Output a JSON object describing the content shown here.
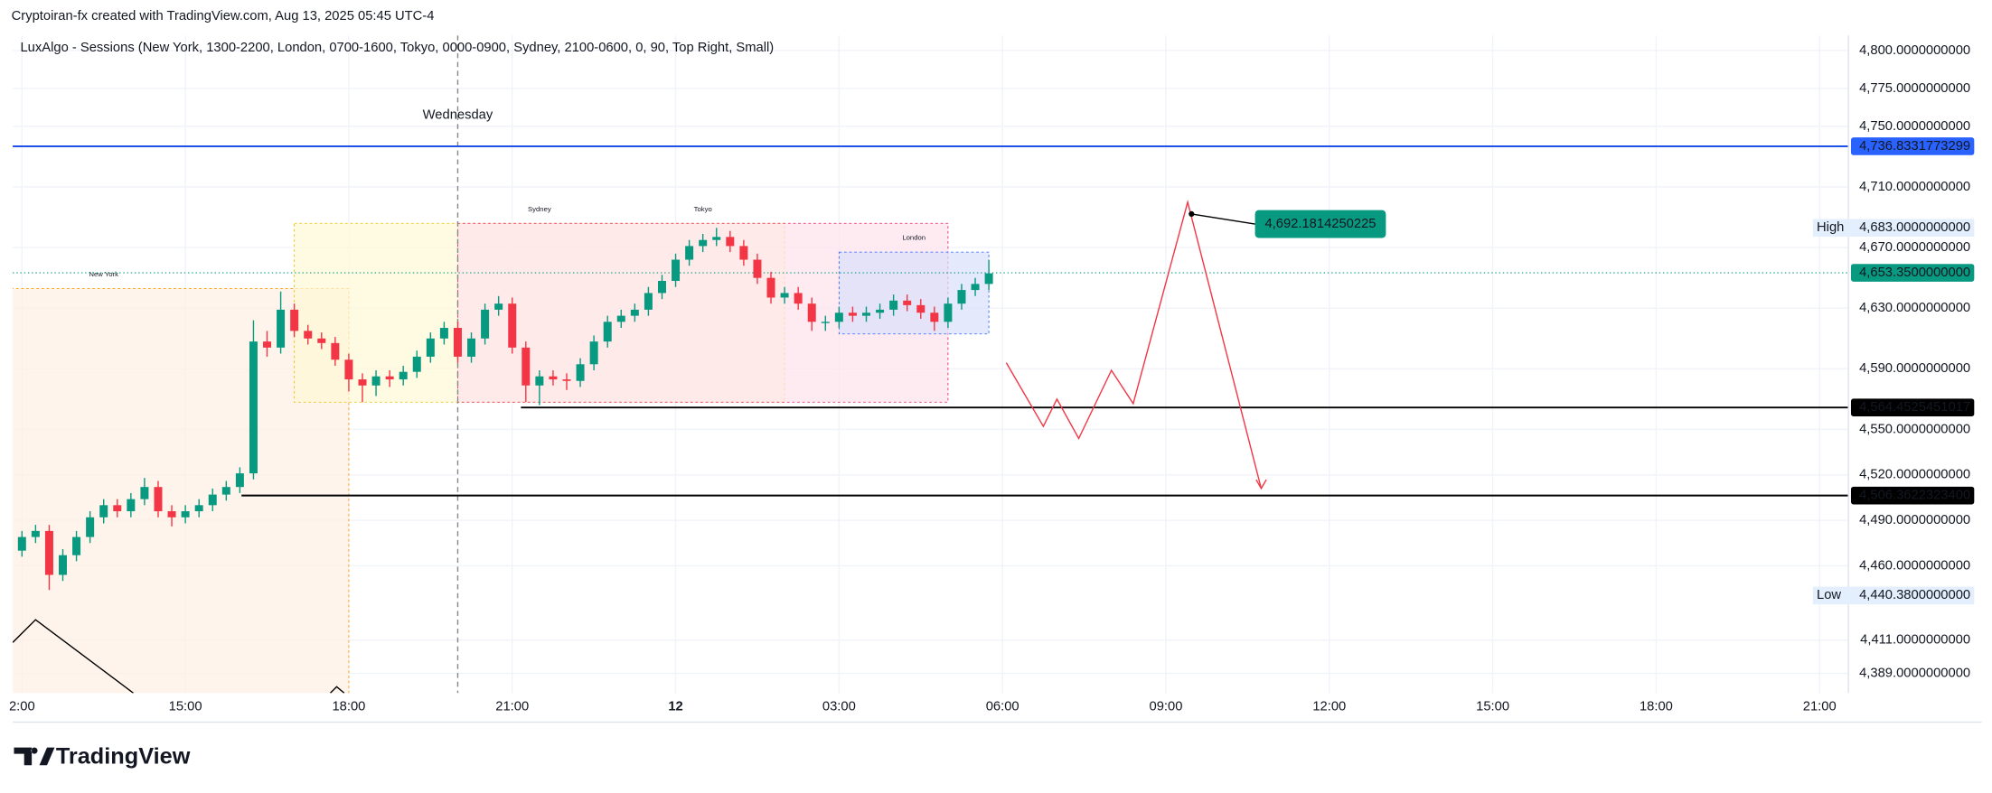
{
  "header": "Cryptoiran-fx created with TradingView.com, Aug 13, 2025 05:45 UTC-4",
  "footer": "TradingView",
  "chart_data": {
    "type": "candlestick",
    "title": "LuxAlgo - Sessions (New York, 1300-2200, London, 0700-1600, Tokyo, 0000-0900, Sydney, 2100-0600, 0, 90, Top Right, Small)",
    "up_color": "#089981",
    "down_color": "#f23645",
    "grid": true,
    "xlim": [
      -0.17,
      33.53
    ],
    "ylim": [
      4376,
      4810
    ],
    "xticks": [
      {
        "value": 0,
        "label": "2:00"
      },
      {
        "value": 3,
        "label": "15:00"
      },
      {
        "value": 6,
        "label": "18:00"
      },
      {
        "value": 9,
        "label": "21:00"
      },
      12,
      {
        "value": 15,
        "label": "03:00"
      },
      {
        "value": 18,
        "label": "06:00"
      },
      {
        "value": 21,
        "label": "09:00"
      },
      {
        "value": 24,
        "label": "12:00"
      },
      {
        "value": 27,
        "label": "15:00"
      },
      {
        "value": 30,
        "label": "18:00"
      },
      {
        "value": 33,
        "label": "21:00"
      }
    ],
    "yticks": [
      {
        "value": 4800,
        "label": "4,800.0000000000"
      },
      {
        "value": 4775,
        "label": "4,775.0000000000"
      },
      {
        "value": 4750,
        "label": "4,750.0000000000"
      },
      {
        "value": 4710,
        "label": "4,710.0000000000"
      },
      {
        "value": 4670,
        "label": "4,670.0000000000"
      },
      {
        "value": 4630,
        "label": "4,630.0000000000"
      },
      {
        "value": 4590,
        "label": "4,590.0000000000"
      },
      {
        "value": 4550,
        "label": "4,550.0000000000"
      },
      {
        "value": 4520,
        "label": "4,520.0000000000"
      },
      {
        "value": 4490,
        "label": "4,490.0000000000"
      },
      {
        "value": 4460,
        "label": "4,460.0000000000"
      },
      {
        "value": 4411,
        "label": "4,411.0000000000"
      },
      {
        "value": 4389,
        "label": "4,389.0000000000"
      }
    ],
    "day_marker": {
      "label": "Wednesday",
      "x": 8
    },
    "x": [
      0,
      0.25,
      0.5,
      0.75,
      1,
      1.25,
      1.5,
      1.75,
      2,
      2.25,
      2.5,
      2.75,
      3,
      3.25,
      3.5,
      3.75,
      4,
      4.25,
      4.5,
      4.75,
      5,
      5.25,
      5.5,
      5.75,
      6,
      6.25,
      6.5,
      6.75,
      7,
      7.25,
      7.5,
      7.75,
      8,
      8.25,
      8.5,
      8.75,
      9,
      9.25,
      9.5,
      9.75,
      10,
      10.25,
      10.5,
      10.75,
      11,
      11.25,
      11.5,
      11.75,
      12,
      12.25,
      12.5,
      12.75,
      13,
      13.25,
      13.5,
      13.75,
      14,
      14.25,
      14.5,
      14.75,
      15,
      15.25,
      15.5,
      15.75,
      16,
      16.25,
      16.5,
      16.75,
      17,
      17.25,
      17.5,
      17.75
    ],
    "open": [
      4470,
      4479,
      4483,
      4454,
      4467,
      4479,
      4492,
      4500,
      4496,
      4504,
      4512,
      4496,
      4492,
      4496,
      4500,
      4507,
      4512,
      4521,
      4608,
      4604,
      4629,
      4615,
      4610,
      4607,
      4596,
      4583,
      4579,
      4585,
      4583,
      4588,
      4598,
      4610,
      4617,
      4598,
      4610,
      4629,
      4633,
      4604,
      4579,
      4585,
      4583,
      4582,
      4593,
      4608,
      4621,
      4625,
      4629,
      4640,
      4648,
      4662,
      4671,
      4675,
      4677,
      4671,
      4662,
      4650,
      4637,
      4640,
      4633,
      4621,
      4621,
      4627,
      4625,
      4627,
      4629,
      4635,
      4632,
      4627,
      4621,
      4633,
      4642,
      4646
    ],
    "high": [
      4483,
      4487,
      4487,
      4471,
      4483,
      4496,
      4504,
      4504,
      4508,
      4518,
      4516,
      4500,
      4500,
      4504,
      4511,
      4516,
      4525,
      4622,
      4615,
      4641,
      4633,
      4619,
      4614,
      4611,
      4600,
      4587,
      4589,
      4589,
      4592,
      4602,
      4614,
      4621,
      4621,
      4614,
      4633,
      4638,
      4637,
      4608,
      4589,
      4589,
      4587,
      4597,
      4612,
      4625,
      4629,
      4633,
      4644,
      4652,
      4666,
      4675,
      4679,
      4683,
      4681,
      4675,
      4666,
      4654,
      4644,
      4644,
      4637,
      4625,
      4631,
      4631,
      4631,
      4633,
      4639,
      4639,
      4636,
      4631,
      4637,
      4646,
      4650,
      4662
    ],
    "low": [
      4466,
      4475,
      4444,
      4450,
      4463,
      4475,
      4488,
      4492,
      4492,
      4500,
      4492,
      4486,
      4488,
      4492,
      4496,
      4503,
      4508,
      4517,
      4598,
      4600,
      4611,
      4606,
      4603,
      4592,
      4575,
      4568,
      4572,
      4578,
      4579,
      4584,
      4594,
      4606,
      4594,
      4594,
      4606,
      4625,
      4600,
      4568,
      4566,
      4579,
      4576,
      4578,
      4589,
      4604,
      4617,
      4621,
      4625,
      4636,
      4644,
      4658,
      4667,
      4671,
      4667,
      4658,
      4646,
      4633,
      4633,
      4629,
      4615,
      4615,
      4617,
      4621,
      4621,
      4623,
      4625,
      4628,
      4623,
      4615,
      4617,
      4629,
      4638,
      4642
    ],
    "close": [
      4479,
      4483,
      4454,
      4467,
      4479,
      4492,
      4500,
      4496,
      4504,
      4512,
      4496,
      4492,
      4496,
      4500,
      4507,
      4512,
      4521,
      4608,
      4604,
      4629,
      4615,
      4610,
      4607,
      4596,
      4583,
      4579,
      4585,
      4583,
      4588,
      4598,
      4610,
      4617,
      4598,
      4610,
      4629,
      4633,
      4604,
      4579,
      4585,
      4583,
      4582,
      4593,
      4608,
      4621,
      4625,
      4629,
      4640,
      4648,
      4662,
      4671,
      4675,
      4677,
      4671,
      4662,
      4650,
      4637,
      4640,
      4633,
      4621,
      4621,
      4627,
      4625,
      4627,
      4629,
      4635,
      4632,
      4627,
      4621,
      4633,
      4642,
      4646,
      4653
    ],
    "sessions": [
      {
        "name": "New York",
        "color": "#ff9800",
        "fill": "#fff0e3",
        "start": -3,
        "end": 6,
        "high": 4643,
        "low": 4370
      },
      {
        "name": "Sydney",
        "color": "#e5c100",
        "fill": "#fff8d6",
        "start": 5,
        "end": 14,
        "high": 4686,
        "low": 4568
      },
      {
        "name": "Tokyo",
        "color": "#e91e63",
        "fill": "#fde3ec",
        "start": 8,
        "end": 17,
        "high": 4686,
        "low": 4568
      },
      {
        "name": "London",
        "color": "#2962ff",
        "fill": "#d9e0fb",
        "start": 15,
        "end": 17.75,
        "high": 4667,
        "low": 4613
      }
    ],
    "levels": [
      {
        "value": 4736.8331773299,
        "label": "4,736.8331773299",
        "color": "#1e53e5",
        "style": "solid",
        "tag": "#2962ff"
      },
      {
        "value": 4653.35,
        "label": "4,653.3500000000",
        "color": "#089981",
        "style": "dotted",
        "tag": "#089981"
      },
      {
        "value": 4564.4525451017,
        "label": "4,564.4525451017",
        "color": "#000000",
        "style": "solid",
        "tag": "#000000",
        "start": 9.16
      },
      {
        "value": 4506.36223234,
        "label": "4,506.3622323400",
        "color": "#000000",
        "style": "solid",
        "tag": "#000000",
        "start": 4.03
      }
    ],
    "price_tags": [
      {
        "name": "High",
        "value": 4683,
        "label": "4,683.0000000000"
      },
      {
        "name": "Low",
        "value": 4440.38,
        "label": "4,440.3800000000"
      }
    ],
    "projection": {
      "color": "#f23645",
      "x": [
        18.07,
        18.75,
        19.0,
        19.4,
        20.0,
        20.4,
        21.4,
        22.75
      ],
      "y": [
        4594,
        4552,
        4570,
        4544,
        4589,
        4567,
        4700,
        4511
      ]
    },
    "annotation": {
      "label": "4,692.1814250225",
      "value": 4692.1814250225,
      "x": 21.47,
      "color": "#089981"
    }
  }
}
